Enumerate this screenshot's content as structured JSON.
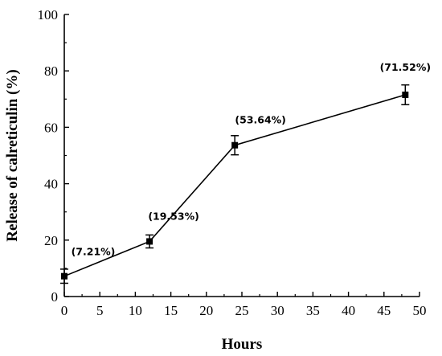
{
  "chart_data": {
    "type": "line",
    "xlabel": "Hours",
    "ylabel": "Release of calreticulin (%)",
    "xlim": [
      0,
      50
    ],
    "ylim": [
      0,
      100
    ],
    "xticks": [
      0,
      5,
      10,
      15,
      20,
      25,
      30,
      35,
      40,
      45,
      50
    ],
    "yticks": [
      0,
      20,
      40,
      60,
      80,
      100
    ],
    "grid": false,
    "series": [
      {
        "x": [
          0,
          12,
          24,
          48
        ],
        "y": [
          7.21,
          19.53,
          53.64,
          71.52
        ],
        "error": [
          2.5,
          2.3,
          3.4,
          3.5
        ],
        "labels": [
          "(7.21%)",
          "(19.53%)",
          "(53.64%)",
          "(71.52%)"
        ],
        "marker": "square",
        "color": "#000000"
      }
    ]
  }
}
